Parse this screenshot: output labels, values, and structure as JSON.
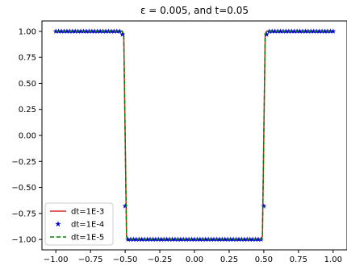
{
  "chart_data": {
    "type": "line",
    "title": "ε = 0.005, and t=0.05",
    "xlabel": "",
    "ylabel": "",
    "xlim": [
      -1.1,
      1.1
    ],
    "ylim": [
      -1.1,
      1.1
    ],
    "xticks": [
      -1.0,
      -0.75,
      -0.5,
      -0.25,
      0.0,
      0.25,
      0.5,
      0.75,
      1.0
    ],
    "xtick_labels": [
      "−1.00",
      "−0.75",
      "−0.50",
      "−0.25",
      "0.00",
      "0.25",
      "0.50",
      "0.75",
      "1.00"
    ],
    "yticks": [
      1.0,
      0.75,
      0.5,
      0.25,
      0.0,
      -0.25,
      -0.5,
      -0.75,
      -1.0
    ],
    "ytick_labels": [
      "1.00",
      "0.75",
      "0.50",
      "0.25",
      "0.00",
      "−0.25",
      "−0.50",
      "−0.75",
      "−1.00"
    ],
    "grid": false,
    "legend_position": "lower-left",
    "series": [
      {
        "name": "dt=1E-3",
        "style": "solid",
        "marker": "none",
        "color": "#d62728",
        "x": [
          -1.0,
          -0.52,
          -0.51,
          -0.5,
          -0.49,
          -0.48,
          0.48,
          0.49,
          0.5,
          0.51,
          0.52,
          1.0
        ],
        "y": [
          1.0,
          1.0,
          0.97,
          0.0,
          -0.97,
          -1.0,
          -1.0,
          -0.97,
          0.0,
          0.97,
          1.0,
          1.0
        ]
      },
      {
        "name": "dt=1E-4",
        "style": "none",
        "marker": "star",
        "color": "#0000cc",
        "x": [
          -1.0,
          -0.98,
          -0.96,
          -0.94,
          -0.92,
          -0.9,
          -0.88,
          -0.86,
          -0.84,
          -0.82,
          -0.8,
          -0.78,
          -0.76,
          -0.74,
          -0.72,
          -0.7,
          -0.68,
          -0.66,
          -0.64,
          -0.62,
          -0.6,
          -0.58,
          -0.56,
          -0.54,
          -0.52,
          -0.5,
          -0.48,
          -0.46,
          -0.44,
          -0.42,
          -0.4,
          -0.38,
          -0.36,
          -0.34,
          -0.32,
          -0.3,
          -0.28,
          -0.26,
          -0.24,
          -0.22,
          -0.2,
          -0.18,
          -0.16,
          -0.14,
          -0.12,
          -0.1,
          -0.08,
          -0.06,
          -0.04,
          -0.02,
          0.0,
          0.02,
          0.04,
          0.06,
          0.08,
          0.1,
          0.12,
          0.14,
          0.16,
          0.18,
          0.2,
          0.22,
          0.24,
          0.26,
          0.28,
          0.3,
          0.32,
          0.34,
          0.36,
          0.38,
          0.4,
          0.42,
          0.44,
          0.46,
          0.48,
          0.5,
          0.52,
          0.54,
          0.56,
          0.58,
          0.6,
          0.62,
          0.64,
          0.66,
          0.68,
          0.7,
          0.72,
          0.74,
          0.76,
          0.78,
          0.8,
          0.82,
          0.84,
          0.86,
          0.88,
          0.9,
          0.92,
          0.94,
          0.96,
          0.98,
          1.0
        ],
        "y": [
          1.0,
          1.0,
          1.0,
          1.0,
          1.0,
          1.0,
          1.0,
          1.0,
          1.0,
          1.0,
          1.0,
          1.0,
          1.0,
          1.0,
          1.0,
          1.0,
          1.0,
          1.0,
          1.0,
          1.0,
          1.0,
          1.0,
          1.0,
          1.0,
          0.97,
          -0.68,
          -1.0,
          -1.0,
          -1.0,
          -1.0,
          -1.0,
          -1.0,
          -1.0,
          -1.0,
          -1.0,
          -1.0,
          -1.0,
          -1.0,
          -1.0,
          -1.0,
          -1.0,
          -1.0,
          -1.0,
          -1.0,
          -1.0,
          -1.0,
          -1.0,
          -1.0,
          -1.0,
          -1.0,
          -1.0,
          -1.0,
          -1.0,
          -1.0,
          -1.0,
          -1.0,
          -1.0,
          -1.0,
          -1.0,
          -1.0,
          -1.0,
          -1.0,
          -1.0,
          -1.0,
          -1.0,
          -1.0,
          -1.0,
          -1.0,
          -1.0,
          -1.0,
          -1.0,
          -1.0,
          -1.0,
          -1.0,
          -1.0,
          -0.68,
          0.97,
          1.0,
          1.0,
          1.0,
          1.0,
          1.0,
          1.0,
          1.0,
          1.0,
          1.0,
          1.0,
          1.0,
          1.0,
          1.0,
          1.0,
          1.0,
          1.0,
          1.0,
          1.0,
          1.0,
          1.0,
          1.0,
          1.0,
          1.0,
          1.0
        ]
      },
      {
        "name": "dt=1E-5",
        "style": "dashed",
        "marker": "none",
        "color": "#008000",
        "x": [
          -1.0,
          -0.52,
          -0.51,
          -0.5,
          -0.49,
          -0.48,
          0.48,
          0.49,
          0.5,
          0.51,
          0.52,
          1.0
        ],
        "y": [
          1.0,
          1.0,
          0.97,
          0.0,
          -0.97,
          -1.0,
          -1.0,
          -0.97,
          0.0,
          0.97,
          1.0,
          1.0
        ]
      }
    ]
  }
}
